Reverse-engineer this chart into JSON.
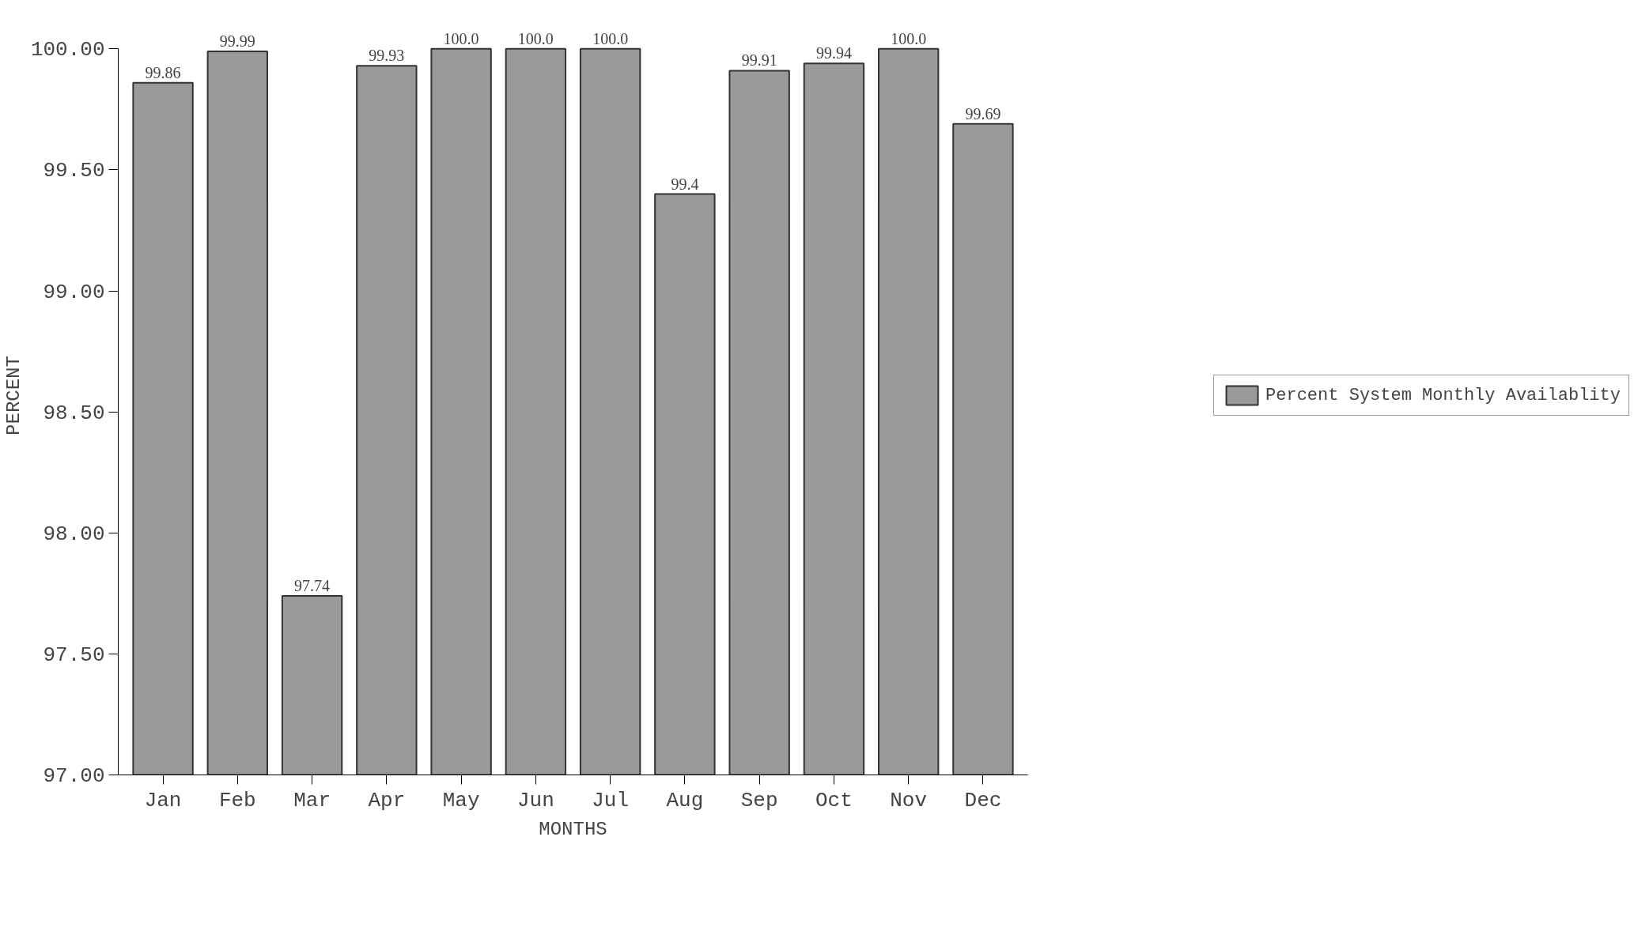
{
  "chart_data": {
    "type": "bar",
    "xlabel": "MONTHS",
    "ylabel": "PERCENT",
    "categories": [
      "Jan",
      "Feb",
      "Mar",
      "Apr",
      "May",
      "Jun",
      "Jul",
      "Aug",
      "Sep",
      "Oct",
      "Nov",
      "Dec"
    ],
    "series": [
      {
        "name": "Percent System Monthly Availablity",
        "color": "#9a9a9a",
        "values": [
          99.86,
          99.99,
          97.74,
          99.93,
          100.0,
          100.0,
          100.0,
          99.4,
          99.91,
          99.94,
          100.0,
          99.69
        ],
        "value_labels": [
          "99.86",
          "99.99",
          "97.74",
          "99.93",
          "100.0",
          "100.0",
          "100.0",
          "99.4",
          "99.91",
          "99.94",
          "100.0",
          "99.69"
        ]
      }
    ],
    "ylim": [
      97,
      100
    ],
    "yticks": [
      {
        "value": 97,
        "label": "97.00"
      },
      {
        "value": 97.5,
        "label": "97.50"
      },
      {
        "value": 98,
        "label": "98.00"
      },
      {
        "value": 98.5,
        "label": "98.50"
      },
      {
        "value": 99,
        "label": "99.00"
      },
      {
        "value": 99.5,
        "label": "99.50"
      },
      {
        "value": 100,
        "label": "100.00"
      }
    ],
    "legend": "right",
    "grid": false
  }
}
